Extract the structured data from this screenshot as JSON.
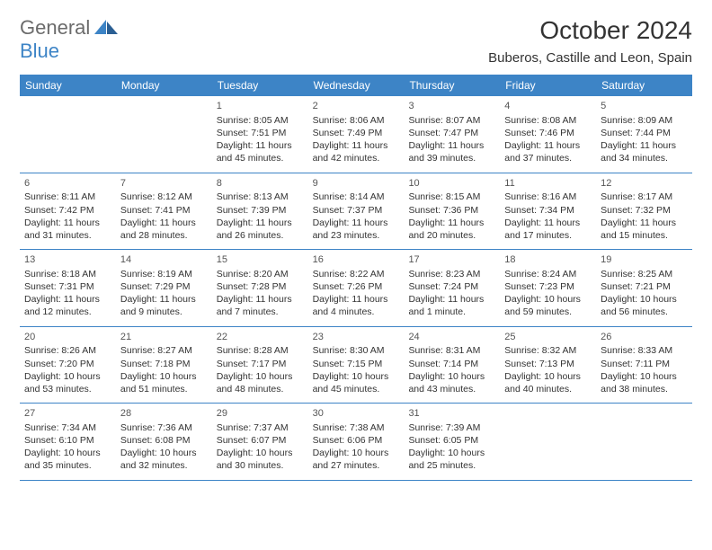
{
  "logo": {
    "part1": "General",
    "part2": "Blue"
  },
  "title": "October 2024",
  "location": "Buberos, Castille and Leon, Spain",
  "colors": {
    "header_bg": "#3d84c6",
    "header_text": "#ffffff",
    "border": "#3d84c6",
    "body_text": "#333333",
    "logo_gray": "#6b6b6b",
    "logo_blue": "#3d84c6",
    "page_bg": "#ffffff"
  },
  "dayNames": [
    "Sunday",
    "Monday",
    "Tuesday",
    "Wednesday",
    "Thursday",
    "Friday",
    "Saturday"
  ],
  "weeks": [
    [
      null,
      null,
      {
        "n": "1",
        "sr": "Sunrise: 8:05 AM",
        "ss": "Sunset: 7:51 PM",
        "d1": "Daylight: 11 hours",
        "d2": "and 45 minutes."
      },
      {
        "n": "2",
        "sr": "Sunrise: 8:06 AM",
        "ss": "Sunset: 7:49 PM",
        "d1": "Daylight: 11 hours",
        "d2": "and 42 minutes."
      },
      {
        "n": "3",
        "sr": "Sunrise: 8:07 AM",
        "ss": "Sunset: 7:47 PM",
        "d1": "Daylight: 11 hours",
        "d2": "and 39 minutes."
      },
      {
        "n": "4",
        "sr": "Sunrise: 8:08 AM",
        "ss": "Sunset: 7:46 PM",
        "d1": "Daylight: 11 hours",
        "d2": "and 37 minutes."
      },
      {
        "n": "5",
        "sr": "Sunrise: 8:09 AM",
        "ss": "Sunset: 7:44 PM",
        "d1": "Daylight: 11 hours",
        "d2": "and 34 minutes."
      }
    ],
    [
      {
        "n": "6",
        "sr": "Sunrise: 8:11 AM",
        "ss": "Sunset: 7:42 PM",
        "d1": "Daylight: 11 hours",
        "d2": "and 31 minutes."
      },
      {
        "n": "7",
        "sr": "Sunrise: 8:12 AM",
        "ss": "Sunset: 7:41 PM",
        "d1": "Daylight: 11 hours",
        "d2": "and 28 minutes."
      },
      {
        "n": "8",
        "sr": "Sunrise: 8:13 AM",
        "ss": "Sunset: 7:39 PM",
        "d1": "Daylight: 11 hours",
        "d2": "and 26 minutes."
      },
      {
        "n": "9",
        "sr": "Sunrise: 8:14 AM",
        "ss": "Sunset: 7:37 PM",
        "d1": "Daylight: 11 hours",
        "d2": "and 23 minutes."
      },
      {
        "n": "10",
        "sr": "Sunrise: 8:15 AM",
        "ss": "Sunset: 7:36 PM",
        "d1": "Daylight: 11 hours",
        "d2": "and 20 minutes."
      },
      {
        "n": "11",
        "sr": "Sunrise: 8:16 AM",
        "ss": "Sunset: 7:34 PM",
        "d1": "Daylight: 11 hours",
        "d2": "and 17 minutes."
      },
      {
        "n": "12",
        "sr": "Sunrise: 8:17 AM",
        "ss": "Sunset: 7:32 PM",
        "d1": "Daylight: 11 hours",
        "d2": "and 15 minutes."
      }
    ],
    [
      {
        "n": "13",
        "sr": "Sunrise: 8:18 AM",
        "ss": "Sunset: 7:31 PM",
        "d1": "Daylight: 11 hours",
        "d2": "and 12 minutes."
      },
      {
        "n": "14",
        "sr": "Sunrise: 8:19 AM",
        "ss": "Sunset: 7:29 PM",
        "d1": "Daylight: 11 hours",
        "d2": "and 9 minutes."
      },
      {
        "n": "15",
        "sr": "Sunrise: 8:20 AM",
        "ss": "Sunset: 7:28 PM",
        "d1": "Daylight: 11 hours",
        "d2": "and 7 minutes."
      },
      {
        "n": "16",
        "sr": "Sunrise: 8:22 AM",
        "ss": "Sunset: 7:26 PM",
        "d1": "Daylight: 11 hours",
        "d2": "and 4 minutes."
      },
      {
        "n": "17",
        "sr": "Sunrise: 8:23 AM",
        "ss": "Sunset: 7:24 PM",
        "d1": "Daylight: 11 hours",
        "d2": "and 1 minute."
      },
      {
        "n": "18",
        "sr": "Sunrise: 8:24 AM",
        "ss": "Sunset: 7:23 PM",
        "d1": "Daylight: 10 hours",
        "d2": "and 59 minutes."
      },
      {
        "n": "19",
        "sr": "Sunrise: 8:25 AM",
        "ss": "Sunset: 7:21 PM",
        "d1": "Daylight: 10 hours",
        "d2": "and 56 minutes."
      }
    ],
    [
      {
        "n": "20",
        "sr": "Sunrise: 8:26 AM",
        "ss": "Sunset: 7:20 PM",
        "d1": "Daylight: 10 hours",
        "d2": "and 53 minutes."
      },
      {
        "n": "21",
        "sr": "Sunrise: 8:27 AM",
        "ss": "Sunset: 7:18 PM",
        "d1": "Daylight: 10 hours",
        "d2": "and 51 minutes."
      },
      {
        "n": "22",
        "sr": "Sunrise: 8:28 AM",
        "ss": "Sunset: 7:17 PM",
        "d1": "Daylight: 10 hours",
        "d2": "and 48 minutes."
      },
      {
        "n": "23",
        "sr": "Sunrise: 8:30 AM",
        "ss": "Sunset: 7:15 PM",
        "d1": "Daylight: 10 hours",
        "d2": "and 45 minutes."
      },
      {
        "n": "24",
        "sr": "Sunrise: 8:31 AM",
        "ss": "Sunset: 7:14 PM",
        "d1": "Daylight: 10 hours",
        "d2": "and 43 minutes."
      },
      {
        "n": "25",
        "sr": "Sunrise: 8:32 AM",
        "ss": "Sunset: 7:13 PM",
        "d1": "Daylight: 10 hours",
        "d2": "and 40 minutes."
      },
      {
        "n": "26",
        "sr": "Sunrise: 8:33 AM",
        "ss": "Sunset: 7:11 PM",
        "d1": "Daylight: 10 hours",
        "d2": "and 38 minutes."
      }
    ],
    [
      {
        "n": "27",
        "sr": "Sunrise: 7:34 AM",
        "ss": "Sunset: 6:10 PM",
        "d1": "Daylight: 10 hours",
        "d2": "and 35 minutes."
      },
      {
        "n": "28",
        "sr": "Sunrise: 7:36 AM",
        "ss": "Sunset: 6:08 PM",
        "d1": "Daylight: 10 hours",
        "d2": "and 32 minutes."
      },
      {
        "n": "29",
        "sr": "Sunrise: 7:37 AM",
        "ss": "Sunset: 6:07 PM",
        "d1": "Daylight: 10 hours",
        "d2": "and 30 minutes."
      },
      {
        "n": "30",
        "sr": "Sunrise: 7:38 AM",
        "ss": "Sunset: 6:06 PM",
        "d1": "Daylight: 10 hours",
        "d2": "and 27 minutes."
      },
      {
        "n": "31",
        "sr": "Sunrise: 7:39 AM",
        "ss": "Sunset: 6:05 PM",
        "d1": "Daylight: 10 hours",
        "d2": "and 25 minutes."
      },
      null,
      null
    ]
  ]
}
